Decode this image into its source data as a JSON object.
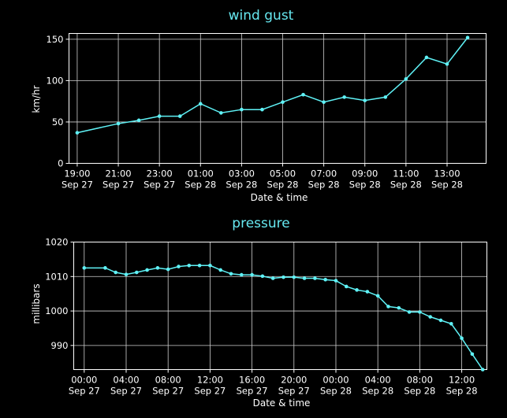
{
  "chart_data": [
    {
      "type": "line",
      "title": "wind gust",
      "xlabel": "Date & time",
      "ylabel": "km/hr",
      "ylim": [
        0,
        157
      ],
      "yticks": [
        0,
        50,
        100,
        150
      ],
      "xlim": [
        18.6,
        38.9
      ],
      "grid": true,
      "xtick_values": [
        19,
        21,
        23,
        25,
        27,
        29,
        31,
        33,
        35,
        37
      ],
      "xtick_labels": [
        [
          "19:00",
          "Sep 27"
        ],
        [
          "21:00",
          "Sep 27"
        ],
        [
          "23:00",
          "Sep 27"
        ],
        [
          "01:00",
          "Sep 28"
        ],
        [
          "03:00",
          "Sep 28"
        ],
        [
          "05:00",
          "Sep 28"
        ],
        [
          "07:00",
          "Sep 28"
        ],
        [
          "09:00",
          "Sep 28"
        ],
        [
          "11:00",
          "Sep 28"
        ],
        [
          "13:00",
          "Sep 28"
        ]
      ],
      "x": [
        19,
        21,
        22,
        23,
        24,
        25,
        26,
        27,
        28,
        29,
        30,
        31,
        32,
        33,
        34,
        35,
        36,
        37,
        38
      ],
      "y": [
        37,
        48,
        52,
        57,
        57,
        72,
        61,
        65,
        65,
        74,
        83,
        74,
        80,
        76,
        80,
        102,
        128,
        120,
        152
      ]
    },
    {
      "type": "line",
      "title": "pressure",
      "xlabel": "Date & time",
      "ylabel": "millibars",
      "ylim": [
        983,
        1020
      ],
      "yticks": [
        990,
        1000,
        1010,
        1020
      ],
      "xlim": [
        -1,
        38.4
      ],
      "grid": true,
      "xtick_values": [
        0,
        4,
        8,
        12,
        16,
        20,
        24,
        28,
        32,
        36
      ],
      "xtick_labels": [
        [
          "00:00",
          "Sep 27"
        ],
        [
          "04:00",
          "Sep 27"
        ],
        [
          "08:00",
          "Sep 27"
        ],
        [
          "12:00",
          "Sep 27"
        ],
        [
          "16:00",
          "Sep 27"
        ],
        [
          "20:00",
          "Sep 27"
        ],
        [
          "00:00",
          "Sep 28"
        ],
        [
          "04:00",
          "Sep 28"
        ],
        [
          "08:00",
          "Sep 28"
        ],
        [
          "12:00",
          "Sep 28"
        ]
      ],
      "x": [
        0,
        2,
        3,
        4,
        5,
        6,
        7,
        8,
        9,
        10,
        11,
        12,
        13,
        14,
        15,
        16,
        17,
        18,
        19,
        20,
        21,
        22,
        23,
        24,
        25,
        26,
        27,
        28,
        29,
        30,
        31,
        32,
        33,
        34,
        35,
        36,
        37,
        38
      ],
      "y": [
        1012.5,
        1012.5,
        1011.2,
        1010.6,
        1011.2,
        1011.9,
        1012.5,
        1012.1,
        1012.9,
        1013.2,
        1013.2,
        1013.2,
        1011.9,
        1010.8,
        1010.5,
        1010.5,
        1010.1,
        1009.5,
        1009.8,
        1009.8,
        1009.5,
        1009.5,
        1009.1,
        1008.8,
        1007.1,
        1006.1,
        1005.6,
        1004.4,
        1001.3,
        1000.9,
        999.7,
        999.7,
        998.3,
        997.3,
        996.3,
        992.1,
        987.5,
        983
      ]
    }
  ]
}
